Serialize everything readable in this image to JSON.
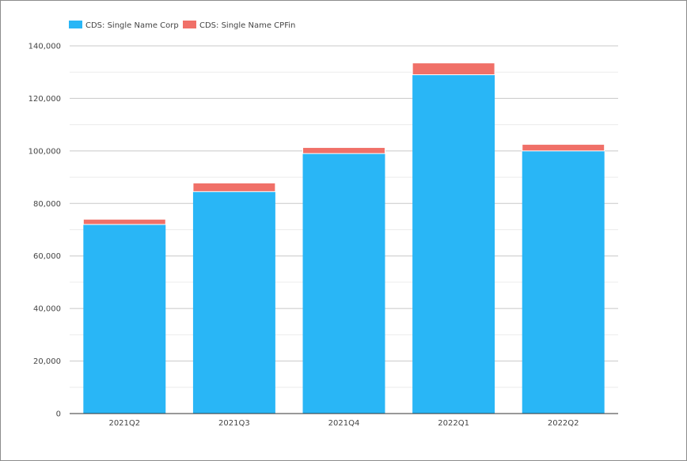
{
  "chart_data": {
    "type": "bar",
    "stacked": true,
    "title": "",
    "xlabel": "",
    "ylabel": "",
    "categories": [
      "2021Q2",
      "2021Q3",
      "2021Q4",
      "2022Q1",
      "2022Q2"
    ],
    "series": [
      {
        "name": "CDS: Single Name Corp",
        "color": "#29b6f6",
        "values": [
          72000,
          84500,
          99000,
          129000,
          100000
        ]
      },
      {
        "name": "CDS: Single Name CPFin",
        "color": "#f07068",
        "values": [
          2000,
          3300,
          2300,
          4500,
          2500
        ]
      }
    ],
    "ylim": [
      0,
      140000
    ],
    "yticks": [
      0,
      20000,
      40000,
      60000,
      80000,
      100000,
      120000,
      140000
    ],
    "ytick_labels": [
      "0",
      "20,000",
      "40,000",
      "60,000",
      "80,000",
      "100,000",
      "120,000",
      "140,000"
    ],
    "grid": true,
    "legend_position": "top-left"
  }
}
